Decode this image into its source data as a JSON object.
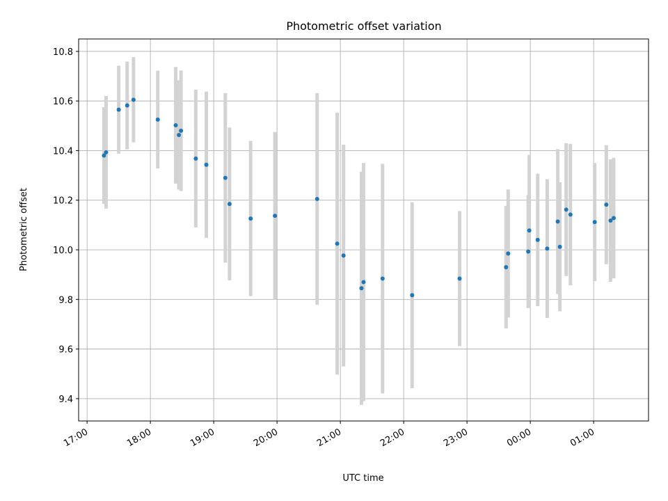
{
  "chart_data": {
    "type": "scatter",
    "title": "Photometric offset variation",
    "xlabel": "UTC time",
    "ylabel": "Photometric offset",
    "x_type": "time",
    "xlim": [
      "16:52",
      "01:52"
    ],
    "ylim": [
      9.31,
      10.85
    ],
    "x_ticks": [
      "17:00",
      "18:00",
      "19:00",
      "20:00",
      "21:00",
      "22:00",
      "23:00",
      "00:00",
      "01:00"
    ],
    "y_ticks": [
      "9.4",
      "9.6",
      "9.8",
      "10.0",
      "10.2",
      "10.4",
      "10.6",
      "10.8"
    ],
    "grid": true,
    "marker_color": "#1f77b4",
    "errorbar_color": "#d3d3d3",
    "points": [
      {
        "time": "17:16",
        "y": 10.38,
        "err": 0.195
      },
      {
        "time": "17:18",
        "y": 10.393,
        "err": 0.227
      },
      {
        "time": "17:30",
        "y": 10.565,
        "err": 0.177
      },
      {
        "time": "17:38",
        "y": 10.582,
        "err": 0.177
      },
      {
        "time": "17:44",
        "y": 10.605,
        "err": 0.172
      },
      {
        "time": "18:07",
        "y": 10.525,
        "err": 0.197
      },
      {
        "time": "18:24",
        "y": 10.502,
        "err": 0.235
      },
      {
        "time": "18:27",
        "y": 10.463,
        "err": 0.22
      },
      {
        "time": "18:29",
        "y": 10.48,
        "err": 0.243
      },
      {
        "time": "18:43",
        "y": 10.368,
        "err": 0.278
      },
      {
        "time": "18:53",
        "y": 10.343,
        "err": 0.295
      },
      {
        "time": "19:11",
        "y": 10.29,
        "err": 0.342
      },
      {
        "time": "19:15",
        "y": 10.185,
        "err": 0.308
      },
      {
        "time": "19:35",
        "y": 10.126,
        "err": 0.313
      },
      {
        "time": "19:58",
        "y": 10.137,
        "err": 0.338
      },
      {
        "time": "20:38",
        "y": 10.205,
        "err": 0.427
      },
      {
        "time": "20:57",
        "y": 10.025,
        "err": 0.528
      },
      {
        "time": "21:03",
        "y": 9.977,
        "err": 0.447
      },
      {
        "time": "21:20",
        "y": 9.845,
        "err": 0.47
      },
      {
        "time": "21:22",
        "y": 9.87,
        "err": 0.48
      },
      {
        "time": "21:40",
        "y": 9.884,
        "err": 0.463
      },
      {
        "time": "22:08",
        "y": 9.817,
        "err": 0.375
      },
      {
        "time": "22:53",
        "y": 9.884,
        "err": 0.272
      },
      {
        "time": "23:37",
        "y": 9.93,
        "err": 0.247
      },
      {
        "time": "23:39",
        "y": 9.985,
        "err": 0.258
      },
      {
        "time": "23:58",
        "y": 9.993,
        "err": 0.228
      },
      {
        "time": "23:59",
        "y": 10.078,
        "err": 0.305
      },
      {
        "time": "00:07",
        "y": 10.04,
        "err": 0.267
      },
      {
        "time": "00:16",
        "y": 10.005,
        "err": 0.28
      },
      {
        "time": "00:26",
        "y": 10.114,
        "err": 0.292
      },
      {
        "time": "00:28",
        "y": 10.012,
        "err": 0.26
      },
      {
        "time": "00:34",
        "y": 10.162,
        "err": 0.268
      },
      {
        "time": "00:38",
        "y": 10.142,
        "err": 0.285
      },
      {
        "time": "01:01",
        "y": 10.112,
        "err": 0.238
      },
      {
        "time": "01:12",
        "y": 10.182,
        "err": 0.24
      },
      {
        "time": "01:16",
        "y": 10.118,
        "err": 0.247
      },
      {
        "time": "01:19",
        "y": 10.128,
        "err": 0.243
      }
    ]
  }
}
